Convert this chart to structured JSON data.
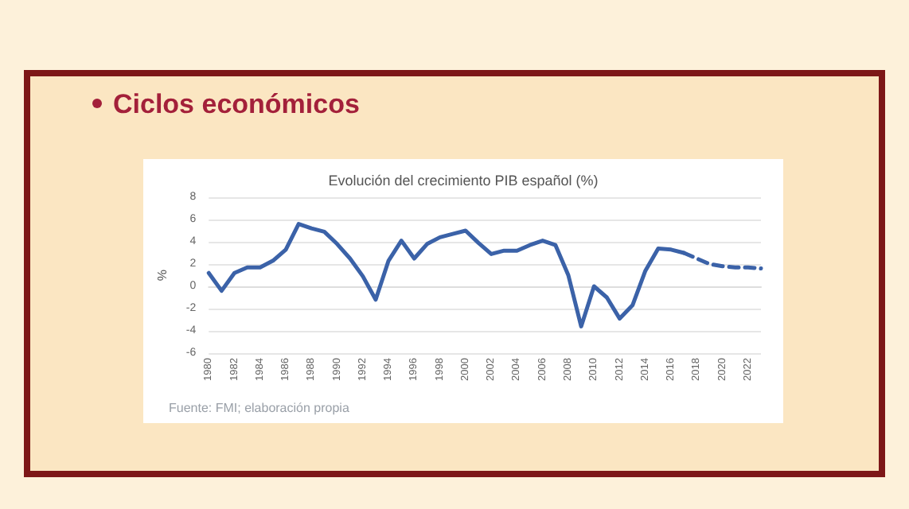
{
  "chart_data": {
    "type": "line",
    "title": "Evolución del crecimiento PIB español (%)",
    "ylabel": "%",
    "annotations": [
      "Ciclos económicos",
      "Fuente: FMI; elaboración propia"
    ],
    "categories": [
      "1980",
      null,
      "1982",
      null,
      "1984",
      null,
      "1986",
      null,
      "1988",
      null,
      "1990",
      null,
      "1992",
      null,
      "1994",
      null,
      "1996",
      null,
      "1998",
      null,
      "2000",
      null,
      "2002",
      null,
      "2004",
      null,
      "2006",
      null,
      "2008",
      null,
      "2010",
      null,
      "2012",
      null,
      "2014",
      null,
      "2016",
      null,
      "2018",
      null,
      "2020",
      null,
      "2022",
      null
    ],
    "series": [
      {
        "color": "#3b62a8",
        "line_style": "solid",
        "values": [
          1.2,
          -0.4,
          1.2,
          1.7,
          1.7,
          2.3,
          3.3,
          5.6,
          5.2,
          4.9,
          3.8,
          2.5,
          0.9,
          -1.2,
          2.3,
          4.1,
          2.5,
          3.8,
          4.4,
          4.7,
          5.0,
          3.9,
          2.9,
          3.2,
          3.2,
          3.7,
          4.1,
          3.7,
          1.0,
          -3.6,
          0.0,
          -1.0,
          -2.9,
          -1.7,
          1.4,
          3.4,
          3.3,
          3.0,
          null,
          null,
          null,
          null,
          null,
          null
        ]
      },
      {
        "color": "#3b62a8",
        "line_style": "dashed",
        "values": [
          null,
          null,
          null,
          null,
          null,
          null,
          null,
          null,
          null,
          null,
          null,
          null,
          null,
          null,
          null,
          null,
          null,
          null,
          null,
          null,
          null,
          null,
          null,
          null,
          null,
          null,
          null,
          null,
          null,
          null,
          null,
          null,
          null,
          null,
          null,
          null,
          null,
          3.0,
          2.5,
          2.0,
          1.8,
          1.7,
          1.7,
          1.6
        ]
      }
    ],
    "ylim": [
      -6,
      8
    ],
    "yticks": [
      -6,
      -4,
      -2,
      0,
      2,
      4,
      6,
      8
    ],
    "grid": "y",
    "marker": "none"
  }
}
